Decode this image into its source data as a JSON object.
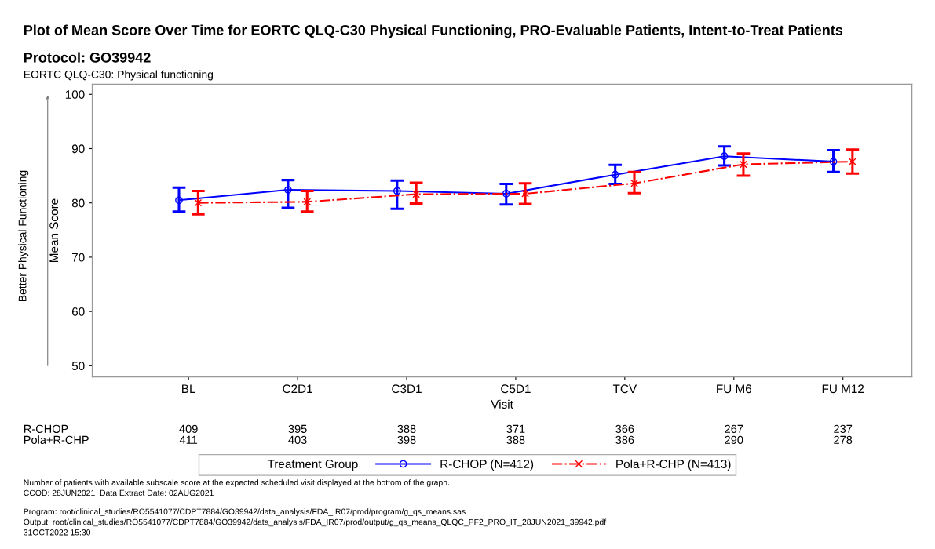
{
  "chart_data": {
    "type": "line",
    "title": "Plot of Mean Score Over Time for EORTC QLQ-C30 Physical Functioning, PRO-Evaluable Patients, Intent-to-Treat Patients",
    "subtitle": "Protocol: GO39942",
    "xlabel": "Visit",
    "ylabel": "Mean Score",
    "legend_title": "Treatment Group",
    "categories": [
      "BL",
      "C2D1",
      "C3D1",
      "C5D1",
      "TCV",
      "FU M6",
      "FU M12"
    ],
    "series": [
      {
        "name": "R-CHOP (N=412)",
        "color": "#0000ff",
        "marker": "circle",
        "line_style": "solid",
        "values": [
          80.5,
          82.4,
          82.2,
          81.7,
          85.2,
          88.6,
          87.6
        ],
        "errors": [
          [
            78.4,
            82.8
          ],
          [
            79.1,
            84.2
          ],
          [
            78.9,
            84.1
          ],
          [
            79.7,
            83.5
          ],
          [
            83.5,
            87.0
          ],
          [
            86.9,
            90.4
          ],
          [
            85.7,
            89.7
          ]
        ]
      },
      {
        "name": "Pola+R-CHP (N=413)",
        "color": "#ff0000",
        "marker": "cross",
        "line_style": "dashdot",
        "values": [
          80.0,
          80.2,
          81.6,
          81.7,
          83.6,
          87.1,
          87.6
        ],
        "errors": [
          [
            77.9,
            82.2
          ],
          [
            78.4,
            82.2
          ],
          [
            79.9,
            83.7
          ],
          [
            79.8,
            83.6
          ],
          [
            81.8,
            85.7
          ],
          [
            85.0,
            89.1
          ],
          [
            85.4,
            89.8
          ]
        ]
      }
    ],
    "ylim": [
      48,
      101.8
    ],
    "yticks": [
      50,
      60,
      70,
      80,
      90,
      100
    ],
    "grid": false,
    "legend": "bottom",
    "annotations": [
      "EORTC QLQ-C30: Physical functioning",
      "Better Physical Functioning",
      "R-CHOP",
      "409",
      "395",
      "388",
      "371",
      "366",
      "267",
      "237",
      "Pola+R-CHP",
      "411",
      "403",
      "398",
      "388",
      "386",
      "290",
      "278",
      "Number of patients with available subscale score at the expected scheduled visit displayed at the bottom of the graph.",
      "CCOD: 28JUN2021  Data Extract Date: 02AUG2021",
      "Program: root/clinical_studies/RO5541077/CDPT7884/GO39942/data_analysis/FDA_IR07/prod/program/g_qs_means.sas",
      "Output: root/clinical_studies/RO5541077/CDPT7884/GO39942/data_analysis/FDA_IR07/prod/output/g_qs_means_QLQC_PF2_PRO_IT_28JUN2021_39942.pdf",
      "31OCT2022 15:30"
    ]
  }
}
